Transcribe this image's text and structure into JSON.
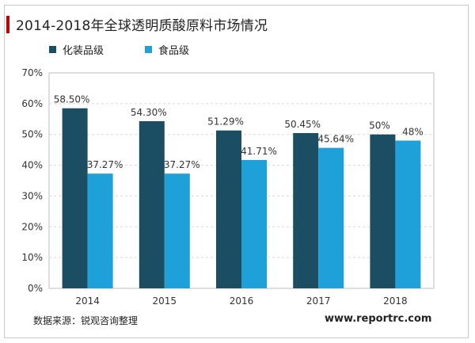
{
  "title": "2014-2018年全球透明质酸原料市场情况",
  "source": "数据来源：锐观咨询整理",
  "website": "www.reportrc.com",
  "colors": {
    "series1": "#1b4e62",
    "series2": "#1ea0d8",
    "grid": "#d9d9d9",
    "title_accent": "#c00000"
  },
  "chart_data": {
    "type": "bar",
    "title": "2014-2018年全球透明质酸原料市场情况",
    "categories": [
      "2014",
      "2015",
      "2016",
      "2017",
      "2018"
    ],
    "series": [
      {
        "name": "化装品级",
        "values": [
          58.5,
          54.3,
          51.29,
          50.45,
          50
        ],
        "labels": [
          "58.50%",
          "54.30%",
          "51.29%",
          "50.45%",
          "50%"
        ]
      },
      {
        "name": "食品级",
        "values": [
          37.27,
          37.27,
          41.71,
          45.64,
          48
        ],
        "labels": [
          "37.27%",
          "37.27%",
          "41.71%",
          "45.64%",
          "48%"
        ]
      }
    ],
    "ylim": [
      0,
      70
    ],
    "yticks": [
      "0%",
      "10%",
      "20%",
      "30%",
      "40%",
      "50%",
      "60%",
      "70%"
    ],
    "grid": true,
    "legend": "top-left"
  }
}
